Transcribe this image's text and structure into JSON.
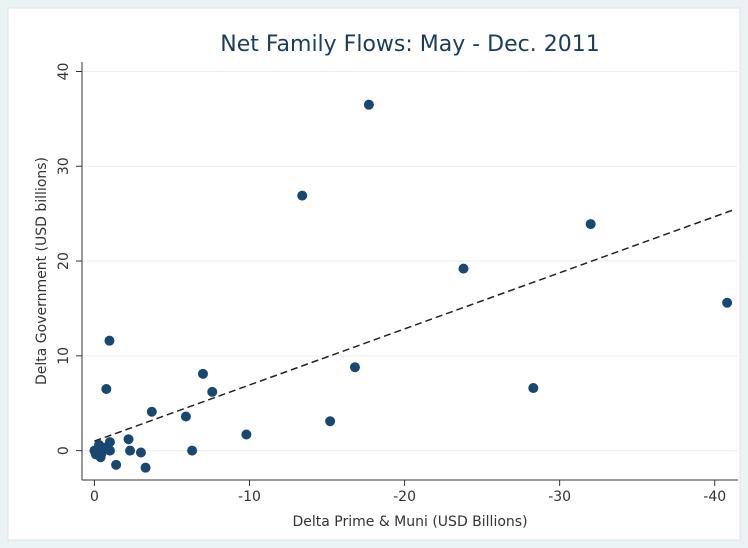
{
  "chart_data": {
    "type": "scatter",
    "title": "Net Family Flows: May - Dec. 2011",
    "x_label": "Delta Prime & Muni (USD Billions)",
    "y_label": "Delta Government (USD billions)",
    "color": "#1a476f",
    "x": [
      -0.97,
      -0.77,
      -17.7,
      -13.4,
      -32.0,
      -23.8,
      -40.8,
      -16.8,
      -7.0,
      -7.6,
      -28.3,
      -3.7,
      -5.9,
      -9.8,
      -15.2,
      -2.2,
      -2.3,
      -6.3,
      -3.0,
      -1.4,
      -3.3,
      0,
      -0.2,
      -0.3,
      -0.4,
      -0.5,
      -0.7,
      -1.0,
      -1.0,
      -0.1,
      -0.45
    ],
    "y": [
      11.6,
      6.5,
      36.5,
      26.9,
      23.9,
      19.2,
      15.6,
      8.8,
      8.1,
      6.2,
      6.6,
      4.1,
      3.6,
      1.7,
      3.1,
      1.2,
      0,
      0,
      -0.2,
      -1.5,
      -1.8,
      0,
      -0.1,
      0.6,
      -0.7,
      0.1,
      0.3,
      0.9,
      0,
      -0.4,
      -0.3
    ],
    "fit_line": {
      "x": [
        0,
        -41.2
      ],
      "y": [
        1.0,
        25.4
      ]
    },
    "xlim": [
      0.8,
      -41.5
    ],
    "ylim": [
      -3.1,
      41
    ],
    "xticks": [
      0,
      -10,
      -20,
      -30,
      -40
    ],
    "yticks": [
      0,
      10,
      20,
      30,
      40
    ],
    "grid": true
  }
}
